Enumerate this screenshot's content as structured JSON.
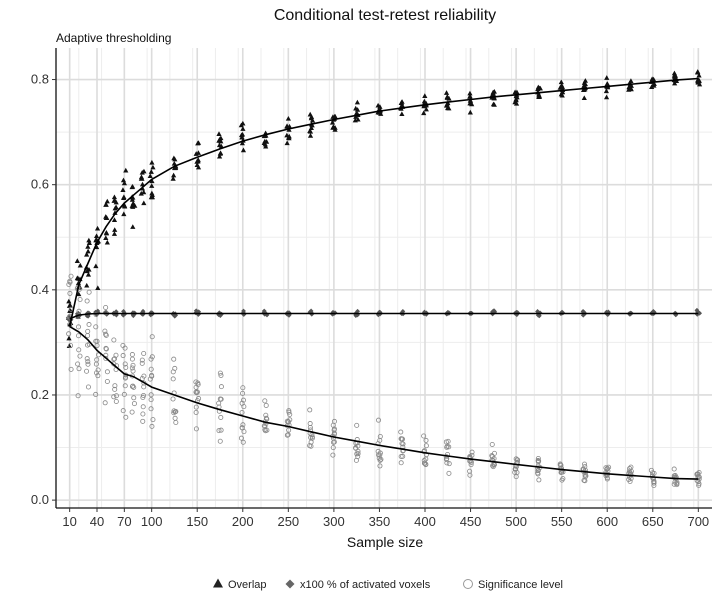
{
  "chart_data": {
    "type": "scatter",
    "title": "Conditional test-retest reliability",
    "subtitle": "Adaptive thresholding",
    "xlabel": "Sample size",
    "ylabel": "",
    "xlim": [
      -5,
      715
    ],
    "ylim": [
      -0.015,
      0.86
    ],
    "x_ticks": [
      10,
      40,
      70,
      100,
      150,
      200,
      250,
      300,
      350,
      400,
      450,
      500,
      550,
      600,
      650,
      700
    ],
    "y_ticks": [
      0.0,
      0.2,
      0.4,
      0.6,
      0.8
    ],
    "grid": true,
    "legend_position": "bottom",
    "series": [
      {
        "name": "Overlap",
        "marker": "triangle",
        "color": "#111111",
        "x": [
          10,
          20,
          30,
          40,
          50,
          60,
          70,
          80,
          90,
          100,
          125,
          150,
          175,
          200,
          225,
          250,
          275,
          300,
          325,
          350,
          375,
          400,
          425,
          450,
          475,
          500,
          525,
          550,
          575,
          600,
          625,
          650,
          675,
          700
        ],
        "mean": [
          0.33,
          0.41,
          0.45,
          0.49,
          0.52,
          0.545,
          0.565,
          0.58,
          0.595,
          0.61,
          0.635,
          0.652,
          0.668,
          0.683,
          0.695,
          0.706,
          0.715,
          0.724,
          0.732,
          0.74,
          0.746,
          0.752,
          0.757,
          0.762,
          0.767,
          0.771,
          0.775,
          0.779,
          0.783,
          0.787,
          0.791,
          0.795,
          0.799,
          0.802
        ]
      },
      {
        "name": "x100 % of activated voxels",
        "marker": "diamond",
        "color": "#555555",
        "x": [
          10,
          20,
          30,
          40,
          50,
          60,
          70,
          80,
          90,
          100,
          125,
          150,
          175,
          200,
          225,
          250,
          275,
          300,
          325,
          350,
          375,
          400,
          425,
          450,
          475,
          500,
          525,
          550,
          575,
          600,
          625,
          650,
          675,
          700
        ],
        "mean": [
          0.345,
          0.352,
          0.354,
          0.355,
          0.355,
          0.355,
          0.355,
          0.355,
          0.355,
          0.355,
          0.355,
          0.355,
          0.355,
          0.355,
          0.355,
          0.355,
          0.355,
          0.355,
          0.355,
          0.355,
          0.355,
          0.355,
          0.355,
          0.355,
          0.355,
          0.355,
          0.355,
          0.355,
          0.355,
          0.355,
          0.355,
          0.355,
          0.355,
          0.355
        ]
      },
      {
        "name": "Significance level",
        "marker": "open-circle",
        "color": "#888888",
        "x": [
          10,
          20,
          30,
          40,
          50,
          60,
          70,
          80,
          90,
          100,
          125,
          150,
          175,
          200,
          225,
          250,
          275,
          300,
          325,
          350,
          375,
          400,
          425,
          450,
          475,
          500,
          525,
          550,
          575,
          600,
          625,
          650,
          675,
          700
        ],
        "mean": [
          0.33,
          0.32,
          0.305,
          0.285,
          0.27,
          0.255,
          0.24,
          0.235,
          0.225,
          0.215,
          0.2,
          0.185,
          0.172,
          0.16,
          0.148,
          0.14,
          0.13,
          0.12,
          0.112,
          0.104,
          0.097,
          0.09,
          0.084,
          0.078,
          0.073,
          0.068,
          0.063,
          0.058,
          0.054,
          0.05,
          0.047,
          0.044,
          0.041,
          0.04
        ]
      }
    ]
  }
}
